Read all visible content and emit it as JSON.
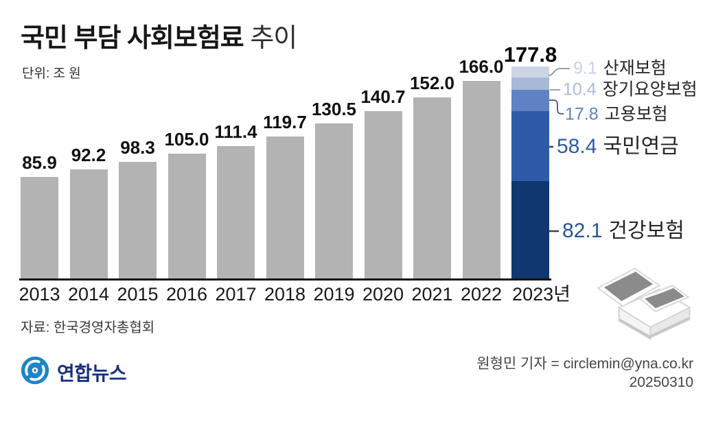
{
  "title": {
    "main": "국민 부담 사회보험료",
    "suffix": " 추이"
  },
  "unit_label": "단위: 조 원",
  "chart_data": {
    "type": "bar",
    "title": "국민 부담 사회보험료 추이",
    "ylabel": "조 원",
    "categories": [
      "2013",
      "2014",
      "2015",
      "2016",
      "2017",
      "2018",
      "2019",
      "2020",
      "2021",
      "2022",
      "2023년"
    ],
    "values": [
      85.9,
      92.2,
      98.3,
      105.0,
      111.4,
      119.7,
      130.5,
      140.7,
      152.0,
      166.0,
      177.8
    ],
    "bar_color": "#b3b3b3",
    "axis_color": "#141414",
    "grid": false,
    "ylim": [
      0,
      177.8
    ],
    "final_bar_stacked": {
      "category": "2023",
      "total": 177.8,
      "segments_bottom_to_top": [
        {
          "label": "건강보험",
          "value": 82.1,
          "color": "#10376f"
        },
        {
          "label": "국민연금",
          "value": 58.4,
          "color": "#2d5ba8"
        },
        {
          "label": "고용보험",
          "value": 17.8,
          "color": "#5f82c4"
        },
        {
          "label": "장기요양보험",
          "value": 10.4,
          "color": "#a8b8d6"
        },
        {
          "label": "산재보험",
          "value": 9.1,
          "color": "#ccd5e6"
        }
      ]
    }
  },
  "legend": [
    {
      "value": "9.1",
      "label": "산재보험",
      "value_color": "#c7d1e5"
    },
    {
      "value": "10.4",
      "label": "장기요양보험",
      "value_color": "#a9b9d7"
    },
    {
      "value": "17.8",
      "label": "고용보험",
      "value_color": "#6181c1"
    },
    {
      "value": "58.4",
      "label": "국민연금",
      "value_color": "#2d5aa7"
    },
    {
      "value": "82.1",
      "label": "건강보험",
      "value_color": "#275499"
    }
  ],
  "source": "자료: 한국경영자총협회",
  "logo": {
    "text": "연합뉴스",
    "brand_blue": "#1d85c8",
    "text_blue": "#16317d"
  },
  "credit": {
    "byline": "원형민 기자 = circlemin@yna.co.kr",
    "date": "20250310"
  },
  "icons": [
    {
      "name": "yonhap-logo-icon",
      "meaning": "Yonhap News swirl globe mark"
    },
    {
      "name": "books-illustration-icon",
      "meaning": "open ledger books illustration"
    }
  ]
}
